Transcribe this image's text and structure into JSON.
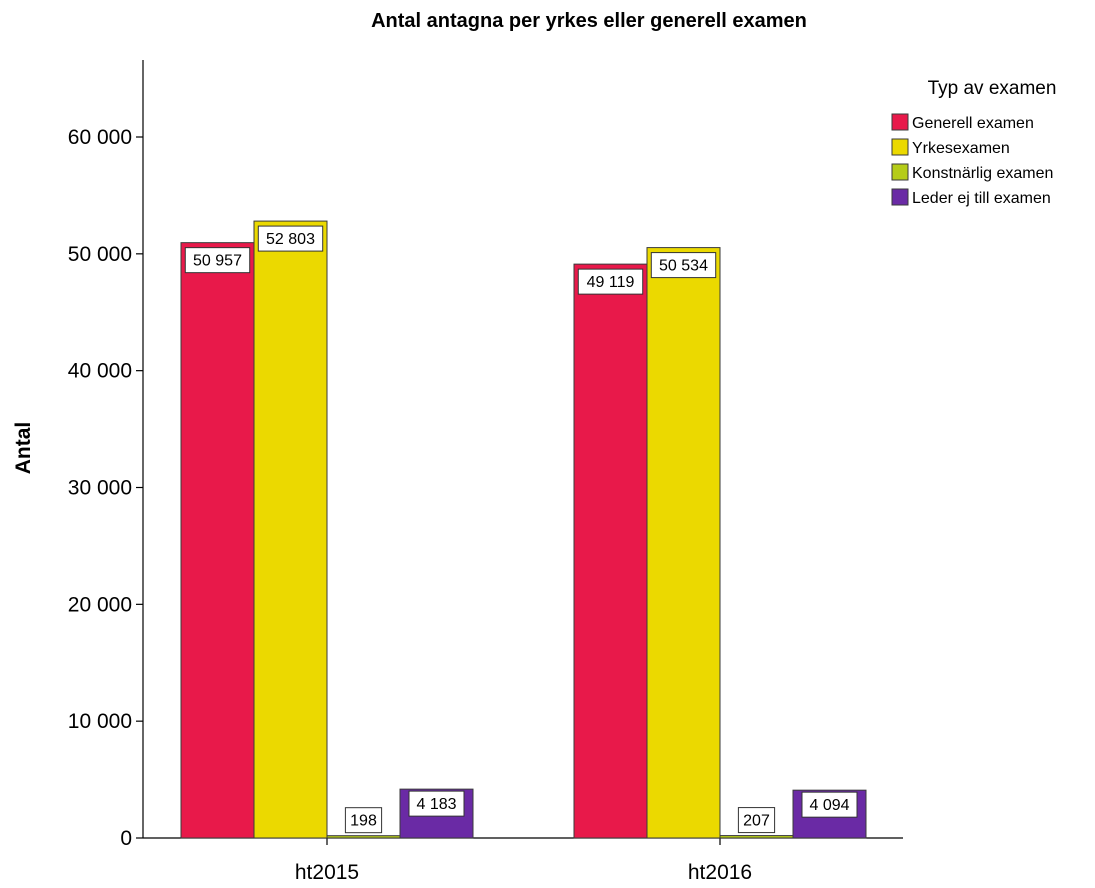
{
  "chart_data": {
    "type": "bar",
    "title": "Antal antagna per yrkes eller generell examen",
    "xlabel": "",
    "ylabel": "Antal",
    "categories": [
      "ht2015",
      "ht2016"
    ],
    "ylim": [
      0,
      66000
    ],
    "yticks": [
      0,
      10000,
      20000,
      30000,
      40000,
      50000,
      60000
    ],
    "ytick_labels": [
      "0",
      "10 000",
      "20 000",
      "30 000",
      "40 000",
      "50 000",
      "60 000"
    ],
    "grid": false,
    "legend": {
      "title": "Typ av examen",
      "position": "top-right"
    },
    "series": [
      {
        "name": "Generell examen",
        "color": "#E8194A",
        "values": [
          50957,
          49119
        ],
        "labels": [
          "50 957",
          "49 119"
        ]
      },
      {
        "name": "Yrkesexamen",
        "color": "#EBD900",
        "values": [
          52803,
          50534
        ],
        "labels": [
          "52 803",
          "50 534"
        ]
      },
      {
        "name": "Konstnärlig examen",
        "color": "#B5CC18",
        "values": [
          198,
          207
        ],
        "labels": [
          "198",
          "207"
        ]
      },
      {
        "name": "Leder ej till examen",
        "color": "#6A2AA5",
        "values": [
          4183,
          4094
        ],
        "labels": [
          "4 183",
          "4 094"
        ]
      }
    ]
  }
}
